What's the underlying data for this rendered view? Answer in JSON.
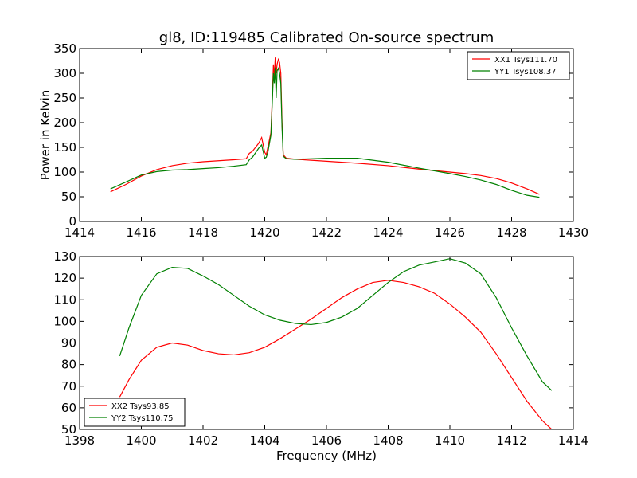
{
  "figure": {
    "title": "gl8, ID:119485 Calibrated On-source spectrum"
  },
  "colors": {
    "series1": "#ff0000",
    "series2": "#008000",
    "axes": "#000000",
    "background": "#ffffff"
  },
  "chart_data": [
    {
      "type": "line",
      "title": "gl8, ID:119485 Calibrated On-source spectrum",
      "xlabel": "",
      "ylabel": "Power in Kelvin",
      "xlim": [
        1414,
        1430
      ],
      "ylim": [
        0,
        350
      ],
      "xticks": [
        1414,
        1416,
        1418,
        1420,
        1422,
        1424,
        1426,
        1428,
        1430
      ],
      "yticks": [
        0,
        50,
        100,
        150,
        200,
        250,
        300,
        350
      ],
      "grid": false,
      "legend": "top-right",
      "series": [
        {
          "name": "XX1 Tsys111.70",
          "color": "#ff0000",
          "x": [
            1415.0,
            1415.5,
            1416.0,
            1416.5,
            1417.0,
            1417.5,
            1418.0,
            1418.5,
            1419.0,
            1419.4,
            1419.5,
            1419.6,
            1419.8,
            1419.9,
            1420.0,
            1420.05,
            1420.1,
            1420.2,
            1420.25,
            1420.28,
            1420.31,
            1420.34,
            1420.37,
            1420.4,
            1420.44,
            1420.48,
            1420.52,
            1420.56,
            1420.6,
            1420.7,
            1421.0,
            1422.0,
            1423.0,
            1424.0,
            1425.0,
            1426.0,
            1426.5,
            1427.0,
            1427.5,
            1428.0,
            1428.5,
            1428.9
          ],
          "y": [
            60,
            75,
            92,
            105,
            113,
            118,
            121,
            123,
            125,
            127,
            138,
            142,
            158,
            170,
            140,
            135,
            150,
            180,
            260,
            318,
            295,
            332,
            300,
            318,
            328,
            322,
            300,
            200,
            135,
            128,
            126,
            122,
            118,
            113,
            106,
            100,
            97,
            93,
            87,
            78,
            66,
            55
          ]
        },
        {
          "name": "YY1 Tsys108.37",
          "color": "#008000",
          "x": [
            1415.0,
            1415.5,
            1416.0,
            1416.5,
            1417.0,
            1417.5,
            1418.0,
            1418.5,
            1419.0,
            1419.4,
            1419.5,
            1419.6,
            1419.8,
            1419.9,
            1420.0,
            1420.05,
            1420.1,
            1420.2,
            1420.25,
            1420.28,
            1420.31,
            1420.34,
            1420.37,
            1420.4,
            1420.44,
            1420.48,
            1420.52,
            1420.56,
            1420.6,
            1420.7,
            1421.0,
            1422.0,
            1423.0,
            1424.0,
            1425.0,
            1426.0,
            1426.5,
            1427.0,
            1427.5,
            1428.0,
            1428.5,
            1428.9
          ],
          "y": [
            66,
            80,
            94,
            101,
            104,
            105,
            107,
            109,
            112,
            115,
            125,
            130,
            148,
            155,
            128,
            130,
            140,
            175,
            250,
            300,
            280,
            312,
            250,
            305,
            310,
            300,
            280,
            190,
            132,
            127,
            126,
            128,
            128,
            120,
            108,
            97,
            91,
            84,
            75,
            63,
            53,
            49
          ]
        }
      ]
    },
    {
      "type": "line",
      "title": "",
      "xlabel": "Frequency (MHz)",
      "ylabel": "",
      "xlim": [
        1398,
        1414
      ],
      "ylim": [
        50,
        130
      ],
      "xticks": [
        1398,
        1400,
        1402,
        1404,
        1406,
        1408,
        1410,
        1412,
        1414
      ],
      "yticks": [
        50,
        60,
        70,
        80,
        90,
        100,
        110,
        120,
        130
      ],
      "grid": false,
      "legend": "bottom-left",
      "series": [
        {
          "name": "XX2 Tsys93.85",
          "color": "#ff0000",
          "x": [
            1399.3,
            1399.6,
            1400.0,
            1400.5,
            1401.0,
            1401.5,
            1402.0,
            1402.5,
            1403.0,
            1403.5,
            1404.0,
            1404.5,
            1405.0,
            1405.5,
            1406.0,
            1406.5,
            1407.0,
            1407.5,
            1408.0,
            1408.5,
            1409.0,
            1409.5,
            1410.0,
            1410.5,
            1411.0,
            1411.5,
            1412.0,
            1412.5,
            1413.0,
            1413.3
          ],
          "y": [
            65,
            73,
            82,
            88,
            90,
            89,
            86.5,
            85,
            84.5,
            85.5,
            88,
            92,
            96.5,
            101,
            106,
            111,
            115,
            118,
            119,
            118,
            116,
            113,
            108,
            102,
            95,
            85,
            74,
            63,
            54,
            50
          ]
        },
        {
          "name": "YY2 Tsys110.75",
          "color": "#008000",
          "x": [
            1399.3,
            1399.6,
            1400.0,
            1400.5,
            1401.0,
            1401.5,
            1402.0,
            1402.5,
            1403.0,
            1403.5,
            1404.0,
            1404.5,
            1405.0,
            1405.5,
            1406.0,
            1406.5,
            1407.0,
            1407.5,
            1408.0,
            1408.5,
            1409.0,
            1409.5,
            1410.0,
            1410.5,
            1411.0,
            1411.5,
            1412.0,
            1412.5,
            1413.0,
            1413.3
          ],
          "y": [
            84,
            97,
            112,
            122,
            125,
            124.5,
            121,
            117,
            112,
            107,
            103,
            100.5,
            99,
            98.5,
            99.5,
            102,
            106,
            112,
            118,
            123,
            126,
            127.5,
            129,
            127,
            122,
            111,
            97,
            84,
            72,
            68
          ]
        }
      ]
    }
  ]
}
